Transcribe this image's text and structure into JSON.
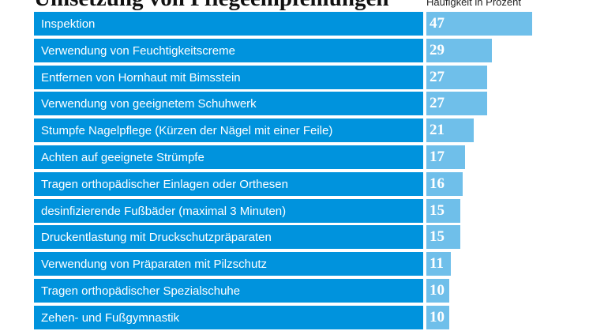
{
  "chart_data": {
    "type": "bar",
    "orientation": "horizontal",
    "title": "Umsetzung von Pflegeempfehlungen",
    "value_label": "Häufigkeit in Prozent",
    "categories": [
      "Inspektion",
      "Verwendung von Feuchtigkeitscreme",
      "Entfernen von Hornhaut mit Bimsstein",
      "Verwendung von geeignetem Schuhwerk",
      "Stumpfe Nagelpflege (Kürzen der Nägel mit einer Feile)",
      "Achten auf geeignete Strümpfe",
      "Tragen orthopädischer Einlagen oder Orthesen",
      "desinfizierende Fußbäder (maximal 3 Minuten)",
      "Druckentlastung mit Druckschutzpräparaten",
      "Verwendung von Präparaten mit Pilzschutz",
      "Tragen orthopädischer Spezialschuhe",
      "Zehen- und Fußgymnastik"
    ],
    "values": [
      47,
      29,
      27,
      27,
      21,
      17,
      16,
      15,
      15,
      11,
      10,
      10
    ],
    "colors": {
      "label_bar": "#0093dd",
      "value_bar": "#6fbfea"
    }
  }
}
